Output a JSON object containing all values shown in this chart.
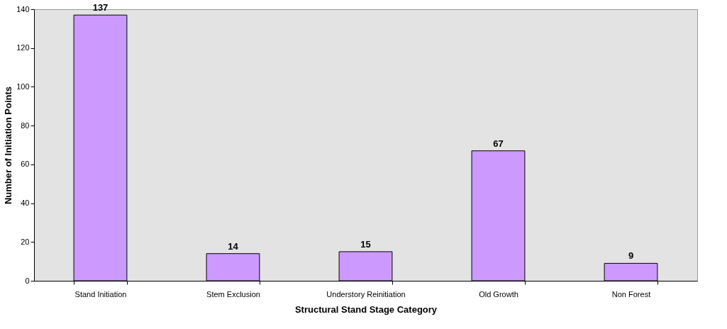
{
  "chart_data": {
    "type": "bar",
    "xlabel": "Structural Stand Stage Category",
    "ylabel": "Number of Initiation Points",
    "categories": [
      "Stand Initiation",
      "Stem Exclusion",
      "Understory Reinitiation",
      "Old Growth",
      "Non Forest"
    ],
    "values": [
      137,
      14,
      15,
      67,
      9
    ],
    "color": "#cc99ff",
    "ylim": [
      0,
      140
    ],
    "yticks": [
      0,
      20,
      40,
      60,
      80,
      100,
      120,
      140
    ],
    "grid": false,
    "data_labels": true
  }
}
